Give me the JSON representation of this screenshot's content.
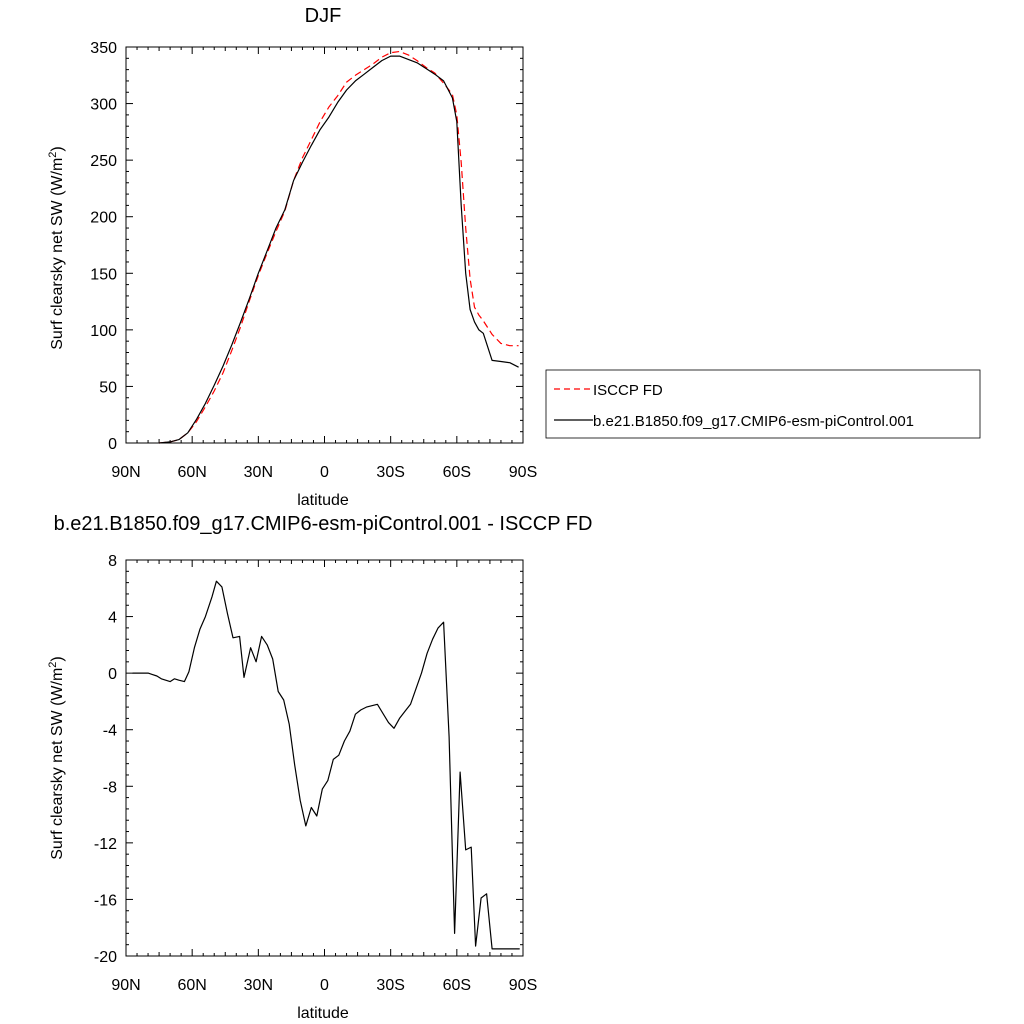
{
  "chart_data": [
    {
      "type": "line",
      "title": "DJF",
      "xlabel": "latitude",
      "ylabel": "Surf clearsky net SW (W/m",
      "ylabel_sup": "2",
      "ylabel_end": ")",
      "xlim": [
        90,
        -90
      ],
      "ylim": [
        0,
        350
      ],
      "xticks": [
        90,
        60,
        30,
        0,
        -30,
        -60,
        -90
      ],
      "xtick_labels": [
        "90N",
        "60N",
        "30N",
        "0",
        "30S",
        "60S",
        "90S"
      ],
      "yticks": [
        0,
        50,
        100,
        150,
        200,
        250,
        300,
        350
      ],
      "ytick_labels": [
        "0",
        "50",
        "100",
        "150",
        "200",
        "250",
        "300",
        "350"
      ],
      "legend": "right",
      "series": [
        {
          "name": "ISCCP FD",
          "color": "#ff0000",
          "style": "dashed",
          "x": [
            75,
            70,
            66,
            62,
            58,
            54,
            50,
            46,
            42,
            38,
            34,
            30,
            26,
            22,
            18,
            14,
            10,
            6,
            2,
            -2,
            -6,
            -10,
            -14,
            -18,
            -22,
            -26,
            -30,
            -34,
            -38,
            -42,
            -46,
            -50,
            -54,
            -58,
            -60,
            -62,
            -64,
            -66,
            -68,
            -70,
            -72,
            -76,
            -80,
            -84,
            -88
          ],
          "values": [
            0,
            1,
            3,
            9,
            19,
            32,
            46,
            62,
            82,
            103,
            126,
            148,
            168,
            187,
            205,
            232,
            252,
            268,
            284,
            297,
            307,
            319,
            325,
            330,
            335,
            341,
            345,
            346,
            343,
            338,
            332,
            327,
            318,
            308,
            290,
            248,
            190,
            145,
            120,
            113,
            108,
            96,
            88,
            86,
            86
          ]
        },
        {
          "name": "b.e21.B1850.f09_g17.CMIP6-esm-piControl.001",
          "color": "#000000",
          "style": "solid",
          "x": [
            75,
            70,
            66,
            62,
            58,
            54,
            50,
            46,
            42,
            38,
            34,
            30,
            26,
            22,
            18,
            14,
            10,
            6,
            2,
            -2,
            -6,
            -10,
            -14,
            -18,
            -22,
            -26,
            -30,
            -34,
            -38,
            -42,
            -46,
            -50,
            -54,
            -58,
            -60,
            -62,
            -64,
            -66,
            -68,
            -70,
            -72,
            -76,
            -80,
            -84,
            -88
          ],
          "values": [
            0,
            1,
            3,
            9,
            21,
            35,
            51,
            68,
            87,
            107,
            128,
            150,
            170,
            190,
            206,
            232,
            248,
            263,
            277,
            288,
            301,
            312,
            320,
            326,
            332,
            338,
            342,
            342,
            339,
            336,
            331,
            326,
            320,
            305,
            284,
            210,
            150,
            118,
            107,
            100,
            97,
            73,
            72,
            71,
            67
          ]
        }
      ]
    },
    {
      "type": "line",
      "title": "b.e21.B1850.f09_g17.CMIP6-esm-piControl.001 - ISCCP FD",
      "xlabel": "latitude",
      "ylabel": "Surf clearsky net SW (W/m",
      "ylabel_sup": "2",
      "ylabel_end": ")",
      "xlim": [
        90,
        -90
      ],
      "ylim": [
        -20,
        8
      ],
      "xticks": [
        90,
        60,
        30,
        0,
        -30,
        -60,
        -90
      ],
      "xtick_labels": [
        "90N",
        "60N",
        "30N",
        "0",
        "30S",
        "60S",
        "90S"
      ],
      "yticks": [
        8,
        4,
        0,
        -4,
        -8,
        -12,
        -16,
        -20
      ],
      "ytick_labels": [
        "8",
        "4",
        "0",
        "-4",
        "-8",
        "-12",
        "-16",
        "-20"
      ],
      "series": [
        {
          "color": "#000000",
          "style": "solid",
          "x": [
            87,
            83,
            80,
            78,
            76,
            74,
            72,
            70,
            68,
            66,
            63.5,
            61.5,
            59,
            56.5,
            54,
            51,
            49,
            46.5,
            44,
            41.5,
            38.5,
            36.5,
            33.5,
            31,
            28.5,
            26,
            23.5,
            21,
            18.5,
            16,
            13.5,
            11,
            8.5,
            6,
            3.5,
            1,
            -1.5,
            -4,
            -6.5,
            -9,
            -11.5,
            -14,
            -16.5,
            -19,
            -21.5,
            -24,
            -29,
            -31.5,
            -34,
            -36.5,
            -39,
            -41.5,
            -44,
            -46.5,
            -49,
            -51.5,
            -54,
            -56.5,
            -59,
            -61.5,
            -64,
            -66.5,
            -68.5,
            -71,
            -73.5,
            -76,
            -79,
            -81.5,
            -84,
            -86.5,
            -88.5
          ],
          "values": [
            0,
            0,
            0,
            -0.1,
            -0.2,
            -0.4,
            -0.5,
            -0.6,
            -0.4,
            -0.5,
            -0.6,
            0.1,
            1.8,
            3.1,
            4,
            5.4,
            6.5,
            6.1,
            4.2,
            2.5,
            2.6,
            -0.3,
            1.8,
            0.8,
            2.6,
            2,
            1,
            -1.3,
            -1.9,
            -3.6,
            -6.5,
            -9,
            -10.8,
            -9.5,
            -10.1,
            -8.2,
            -7.6,
            -6.1,
            -5.8,
            -4.8,
            -4.1,
            -2.9,
            -2.6,
            -2.4,
            -2.3,
            -2.2,
            -3.5,
            -3.9,
            -3.2,
            -2.7,
            -2.2,
            -1.1,
            0,
            1.4,
            2.4,
            3.2,
            3.6,
            -4.5,
            -18.4,
            -7,
            -12.5,
            -12.3,
            -19.3,
            -15.9,
            -15.6,
            -19.5,
            -19.5,
            -19.5,
            -19.5,
            -19.5,
            -19.5
          ]
        }
      ]
    }
  ]
}
